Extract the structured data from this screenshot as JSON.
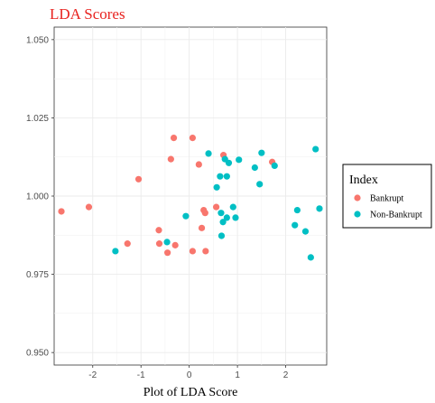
{
  "chart_data": {
    "type": "scatter",
    "title": "LDA Scores",
    "xlabel": "Plot of LDA Score",
    "ylabel": "",
    "xlim": [
      -2.8,
      2.85
    ],
    "ylim": [
      0.946,
      1.054
    ],
    "x_ticks": [
      -2,
      -1,
      0,
      1,
      2
    ],
    "x_tick_labels": [
      "-2",
      "-1",
      "0",
      "1",
      "2"
    ],
    "y_ticks": [
      0.95,
      0.975,
      1.0,
      1.025,
      1.05
    ],
    "y_tick_labels": [
      "0.950",
      "0.975",
      "1.000",
      "1.025",
      "1.050"
    ],
    "grid": true,
    "legend": {
      "title": "Index",
      "placement": "right"
    },
    "series": [
      {
        "name": "Bankrupt",
        "color": "#f8766d",
        "points": [
          [
            -2.65,
            0.9951
          ],
          [
            -2.08,
            0.9965
          ],
          [
            -1.28,
            0.9848
          ],
          [
            -1.05,
            1.0054
          ],
          [
            -0.63,
            0.9891
          ],
          [
            -0.62,
            0.9848
          ],
          [
            -0.45,
            0.9819
          ],
          [
            -0.38,
            1.0118
          ],
          [
            -0.32,
            1.0186
          ],
          [
            -0.29,
            0.9843
          ],
          [
            0.07,
            1.0186
          ],
          [
            0.07,
            0.9824
          ],
          [
            0.2,
            1.0101
          ],
          [
            0.26,
            0.9898
          ],
          [
            0.3,
            0.9955
          ],
          [
            0.33,
            0.9946
          ],
          [
            0.34,
            0.9824
          ],
          [
            0.56,
            0.9965
          ],
          [
            0.71,
            1.0131
          ],
          [
            1.72,
            1.0109
          ]
        ]
      },
      {
        "name": "Non-Bankrupt",
        "color": "#00bfc4",
        "points": [
          [
            -1.53,
            0.9824
          ],
          [
            -0.46,
            0.9853
          ],
          [
            -0.07,
            0.9936
          ],
          [
            0.4,
            1.0136
          ],
          [
            0.57,
            1.0028
          ],
          [
            0.64,
            1.0063
          ],
          [
            0.66,
            0.9946
          ],
          [
            0.67,
            0.9873
          ],
          [
            0.7,
            0.9917
          ],
          [
            0.74,
            1.0118
          ],
          [
            0.78,
            0.9931
          ],
          [
            0.78,
            1.0063
          ],
          [
            0.82,
            1.0106
          ],
          [
            0.91,
            0.9965
          ],
          [
            0.96,
            0.9931
          ],
          [
            1.03,
            1.0116
          ],
          [
            1.36,
            1.0091
          ],
          [
            1.46,
            1.0038
          ],
          [
            1.5,
            1.0138
          ],
          [
            1.77,
            1.0097
          ],
          [
            2.19,
            0.9907
          ],
          [
            2.24,
            0.9955
          ],
          [
            2.41,
            0.9887
          ],
          [
            2.52,
            0.9804
          ],
          [
            2.62,
            1.015
          ],
          [
            2.7,
            0.996
          ]
        ]
      }
    ]
  }
}
